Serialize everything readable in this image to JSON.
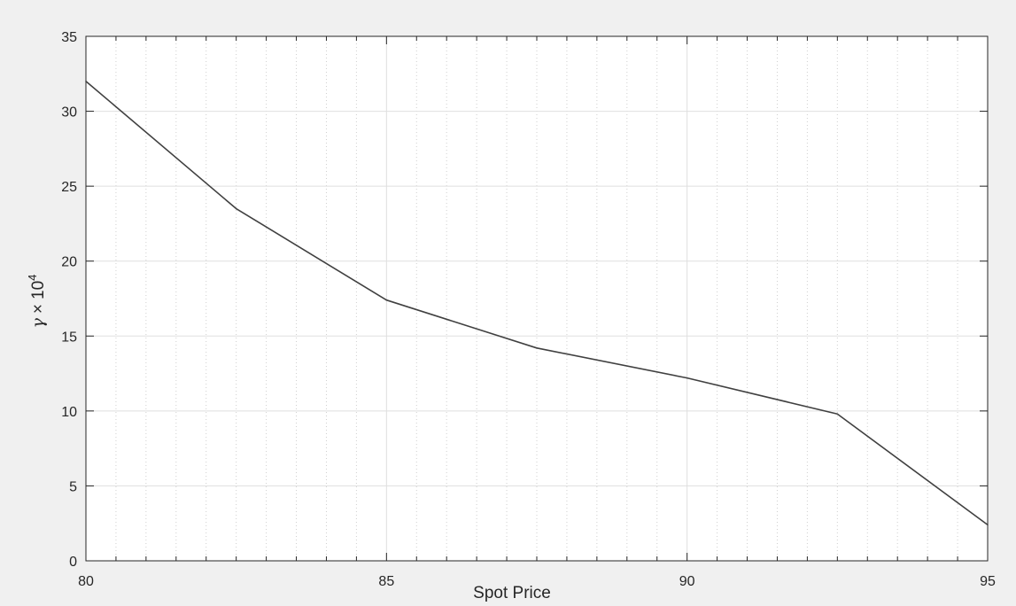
{
  "figure": {
    "background": "#f0f0f0",
    "axes_background": "#ffffff",
    "line_color": "#404040",
    "grid_color": "#dfdfdf",
    "minor_grid_color": "#cfcfcf"
  },
  "chart_data": {
    "type": "line",
    "title": "",
    "xlabel": "Spot Price",
    "ylabel_symbol": "γ",
    "ylabel_times": "×",
    "ylabel_base": "10",
    "ylabel_exponent": "4",
    "xlim": [
      80,
      95
    ],
    "ylim": [
      0,
      35
    ],
    "xticks": [
      "80",
      "85",
      "90",
      "95"
    ],
    "yticks": [
      "0",
      "5",
      "10",
      "15",
      "20",
      "25",
      "30",
      "35"
    ],
    "grid": true,
    "minor_grid": true,
    "series": [
      {
        "x": [
          80,
          82.5,
          85,
          87.5,
          90,
          92.5,
          95
        ],
        "y": [
          32.0,
          23.5,
          17.4,
          14.2,
          12.2,
          9.8,
          2.4
        ]
      }
    ]
  }
}
